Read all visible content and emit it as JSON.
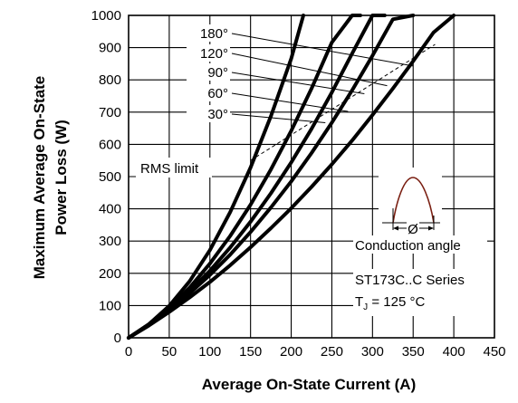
{
  "chart_data": {
    "type": "line",
    "xlabel": "Average On-State Current (A)",
    "ylabel": [
      "Maximum Average On-State",
      "Power Loss (W)"
    ],
    "xlim": [
      0,
      450
    ],
    "ylim": [
      0,
      1000
    ],
    "xticks": [
      0,
      50,
      100,
      150,
      200,
      250,
      300,
      350,
      400,
      450
    ],
    "yticks": [
      0,
      100,
      200,
      300,
      400,
      500,
      600,
      700,
      800,
      900,
      1000
    ],
    "grid": true,
    "series": [
      {
        "name": "180°",
        "x": [
          0,
          25,
          50,
          75,
          100,
          125,
          150,
          175,
          200,
          225,
          250,
          275,
          300,
          325,
          350,
          375,
          400
        ],
        "y": [
          0,
          38,
          80,
          125,
          173,
          225,
          281,
          340,
          402,
          468,
          538,
          612,
          691,
          773,
          858,
          947,
          1000
        ]
      },
      {
        "name": "120°",
        "x": [
          0,
          25,
          50,
          75,
          100,
          125,
          150,
          175,
          200,
          225,
          250,
          275,
          300,
          325,
          350
        ],
        "y": [
          0,
          40,
          86,
          138,
          195,
          258,
          328,
          404,
          485,
          573,
          667,
          768,
          875,
          988,
          1000
        ]
      },
      {
        "name": "90°",
        "x": [
          0,
          25,
          50,
          75,
          100,
          125,
          150,
          175,
          200,
          225,
          250,
          275,
          300,
          315
        ],
        "y": [
          0,
          41,
          89,
          145,
          208,
          280,
          360,
          448,
          544,
          648,
          761,
          882,
          1000,
          1000
        ]
      },
      {
        "name": "60°",
        "x": [
          0,
          25,
          50,
          75,
          100,
          125,
          150,
          175,
          200,
          225,
          250,
          275,
          285
        ],
        "y": [
          0,
          42,
          92,
          155,
          230,
          316,
          413,
          522,
          642,
          773,
          916,
          1000,
          1000
        ]
      },
      {
        "name": "30°",
        "x": [
          0,
          25,
          50,
          75,
          100,
          125,
          150,
          175,
          200,
          215
        ],
        "y": [
          0,
          42,
          99,
          175,
          272,
          390,
          528,
          687,
          866,
          1000
        ]
      }
    ],
    "rms_limit": {
      "label": "RMS limit",
      "x": [
        150,
        377
      ],
      "y": [
        550,
        910
      ]
    },
    "annotations": {
      "conduction_angle": "Conduction angle",
      "angle_symbol": "Ø",
      "series_name": "ST173C..C Series",
      "tj_label": "T",
      "tj_sub": "J",
      "tj_value": " = 125 °C"
    }
  }
}
